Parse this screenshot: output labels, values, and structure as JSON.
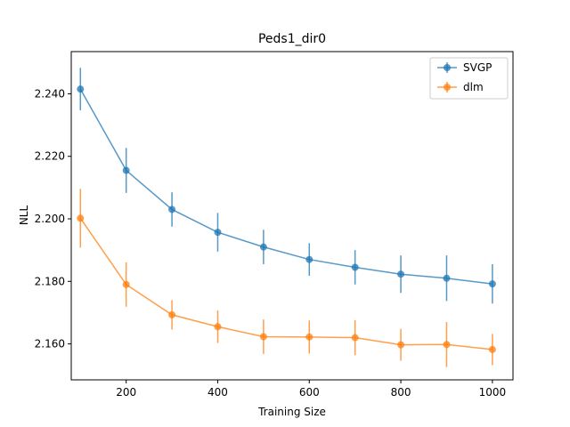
{
  "chart_data": {
    "type": "line",
    "title": "Peds1_dir0",
    "xlabel": "Training Size",
    "ylabel": "NLL",
    "xlim": [
      80,
      1045
    ],
    "ylim": [
      2.1485,
      2.2535
    ],
    "x_ticks": [
      200,
      400,
      600,
      800,
      1000
    ],
    "y_ticks": [
      2.16,
      2.18,
      2.2,
      2.22,
      2.24
    ],
    "y_tick_labels": [
      "2.160",
      "2.180",
      "2.200",
      "2.220",
      "2.240"
    ],
    "grid": false,
    "legend_position": "top-right",
    "x": [
      100,
      200,
      300,
      400,
      500,
      600,
      700,
      800,
      900,
      1000
    ],
    "series": [
      {
        "name": "SVGP",
        "color": "#1f77b4",
        "values": [
          2.2415,
          2.2155,
          2.203,
          2.1957,
          2.191,
          2.187,
          2.1845,
          2.1823,
          2.181,
          2.1792
        ],
        "errors": [
          0.0068,
          0.0072,
          0.0055,
          0.0062,
          0.0055,
          0.0052,
          0.0055,
          0.006,
          0.0073,
          0.0063
        ]
      },
      {
        "name": "dlm",
        "color": "#ff7f0e",
        "values": [
          2.2002,
          2.179,
          2.1693,
          2.1655,
          2.1623,
          2.1622,
          2.162,
          2.1597,
          2.1598,
          2.1582
        ],
        "errors": [
          0.0094,
          0.0071,
          0.0047,
          0.0052,
          0.0055,
          0.0053,
          0.0056,
          0.0051,
          0.0072,
          0.005
        ]
      }
    ]
  }
}
